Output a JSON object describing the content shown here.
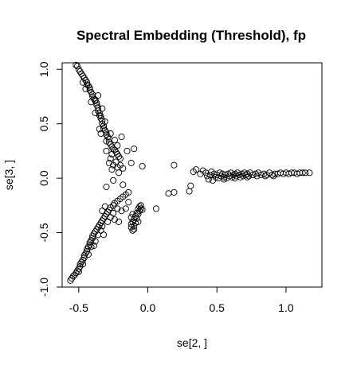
{
  "chart_data": {
    "type": "scatter",
    "title": "Spectral Embedding (Threshold), fp",
    "xlabel": "se[2, ]",
    "ylabel": "se[3, ]",
    "xlim": [
      -0.62,
      1.26
    ],
    "ylim": [
      -1.0,
      1.06
    ],
    "x_ticks": [
      -0.5,
      0.0,
      0.5,
      1.0
    ],
    "x_tick_labels": [
      "-0.5",
      "0.0",
      "0.5",
      "1.0"
    ],
    "y_ticks": [
      -1.0,
      -0.5,
      0.0,
      0.5,
      1.0
    ],
    "y_tick_labels": [
      "-1.0",
      "-0.5",
      "0.0",
      "0.5",
      "1.0"
    ],
    "marker": "open-circle",
    "grid": false,
    "legend": "none",
    "series": [
      {
        "points": [
          [
            -0.52,
            1.04
          ],
          [
            -0.51,
            1.03
          ],
          [
            -0.5,
            1.0
          ],
          [
            -0.49,
            0.98
          ],
          [
            -0.48,
            0.96
          ],
          [
            -0.47,
            0.94
          ],
          [
            -0.46,
            0.92
          ],
          [
            -0.45,
            0.9
          ],
          [
            -0.44,
            0.88
          ],
          [
            -0.44,
            0.86
          ],
          [
            -0.43,
            0.85
          ],
          [
            -0.42,
            0.83
          ],
          [
            -0.42,
            0.81
          ],
          [
            -0.41,
            0.79
          ],
          [
            -0.4,
            0.77
          ],
          [
            -0.4,
            0.75
          ],
          [
            -0.39,
            0.73
          ],
          [
            -0.38,
            0.71
          ],
          [
            -0.38,
            0.72
          ],
          [
            -0.37,
            0.69
          ],
          [
            -0.37,
            0.67
          ],
          [
            -0.36,
            0.65
          ],
          [
            -0.36,
            0.62
          ],
          [
            -0.35,
            0.6
          ],
          [
            -0.35,
            0.58
          ],
          [
            -0.34,
            0.57
          ],
          [
            -0.34,
            0.55
          ],
          [
            -0.33,
            0.53
          ],
          [
            -0.33,
            0.5
          ],
          [
            -0.32,
            0.48
          ],
          [
            -0.32,
            0.46
          ],
          [
            -0.31,
            0.44
          ],
          [
            -0.3,
            0.42
          ],
          [
            -0.3,
            0.4
          ],
          [
            -0.29,
            0.38
          ],
          [
            -0.28,
            0.36
          ],
          [
            -0.28,
            0.33
          ],
          [
            -0.27,
            0.31
          ],
          [
            -0.26,
            0.29
          ],
          [
            -0.25,
            0.27
          ],
          [
            -0.24,
            0.26
          ],
          [
            -0.23,
            0.24
          ],
          [
            -0.22,
            0.22
          ],
          [
            -0.21,
            0.2
          ],
          [
            -0.2,
            0.18
          ],
          [
            -0.24,
            0.35
          ],
          [
            -0.22,
            0.3
          ],
          [
            -0.26,
            0.22
          ],
          [
            -0.3,
            0.25
          ],
          [
            -0.27,
            0.18
          ],
          [
            -0.23,
            0.15
          ],
          [
            -0.2,
            0.12
          ],
          [
            -0.28,
            0.14
          ],
          [
            -0.25,
            0.12
          ],
          [
            -0.22,
            0.1
          ],
          [
            -0.18,
            0.09
          ],
          [
            -0.26,
            0.08
          ],
          [
            -0.15,
            0.25
          ],
          [
            -0.1,
            0.27
          ],
          [
            -0.35,
            0.45
          ],
          [
            -0.31,
            0.52
          ],
          [
            -0.38,
            0.6
          ],
          [
            -0.33,
            0.64
          ],
          [
            -0.41,
            0.7
          ],
          [
            -0.36,
            0.76
          ],
          [
            -0.47,
            0.88
          ],
          [
            -0.45,
            0.82
          ],
          [
            -0.34,
            0.41
          ],
          [
            -0.3,
            0.34
          ],
          [
            -0.27,
            0.41
          ],
          [
            -0.04,
            0.11
          ],
          [
            -0.12,
            0.14
          ],
          [
            -0.21,
            0.05
          ],
          [
            -0.19,
            0.38
          ],
          [
            -0.56,
            -0.94
          ],
          [
            -0.55,
            -0.92
          ],
          [
            -0.54,
            -0.9
          ],
          [
            -0.53,
            -0.89
          ],
          [
            -0.52,
            -0.87
          ],
          [
            -0.51,
            -0.85
          ],
          [
            -0.5,
            -0.83
          ],
          [
            -0.49,
            -0.81
          ],
          [
            -0.49,
            -0.79
          ],
          [
            -0.48,
            -0.77
          ],
          [
            -0.47,
            -0.75
          ],
          [
            -0.46,
            -0.73
          ],
          [
            -0.46,
            -0.71
          ],
          [
            -0.45,
            -0.69
          ],
          [
            -0.44,
            -0.67
          ],
          [
            -0.44,
            -0.65
          ],
          [
            -0.43,
            -0.63
          ],
          [
            -0.42,
            -0.61
          ],
          [
            -0.42,
            -0.59
          ],
          [
            -0.41,
            -0.57
          ],
          [
            -0.4,
            -0.55
          ],
          [
            -0.4,
            -0.53
          ],
          [
            -0.39,
            -0.51
          ],
          [
            -0.38,
            -0.49
          ],
          [
            -0.37,
            -0.47
          ],
          [
            -0.36,
            -0.45
          ],
          [
            -0.35,
            -0.43
          ],
          [
            -0.34,
            -0.41
          ],
          [
            -0.33,
            -0.39
          ],
          [
            -0.32,
            -0.37
          ],
          [
            -0.31,
            -0.35
          ],
          [
            -0.3,
            -0.33
          ],
          [
            -0.29,
            -0.31
          ],
          [
            -0.28,
            -0.29
          ],
          [
            -0.27,
            -0.27
          ],
          [
            -0.25,
            -0.25
          ],
          [
            -0.24,
            -0.23
          ],
          [
            -0.22,
            -0.21
          ],
          [
            -0.2,
            -0.19
          ],
          [
            -0.18,
            -0.17
          ],
          [
            -0.16,
            -0.15
          ],
          [
            -0.14,
            -0.13
          ],
          [
            -0.29,
            -0.4
          ],
          [
            -0.27,
            -0.36
          ],
          [
            -0.33,
            -0.3
          ],
          [
            -0.31,
            -0.26
          ],
          [
            -0.25,
            -0.32
          ],
          [
            -0.22,
            -0.28
          ],
          [
            -0.19,
            -0.3
          ],
          [
            -0.16,
            -0.28
          ],
          [
            -0.24,
            -0.38
          ],
          [
            -0.21,
            -0.4
          ],
          [
            -0.34,
            -0.48
          ],
          [
            -0.36,
            -0.52
          ],
          [
            -0.38,
            -0.58
          ],
          [
            -0.41,
            -0.63
          ],
          [
            -0.43,
            -0.7
          ],
          [
            -0.47,
            -0.79
          ],
          [
            -0.5,
            -0.86
          ],
          [
            -0.3,
            -0.08
          ],
          [
            -0.25,
            -0.02
          ],
          [
            -0.18,
            -0.06
          ],
          [
            -0.14,
            -0.22
          ],
          [
            -0.33,
            -0.44
          ],
          [
            -0.32,
            -0.52
          ],
          [
            -0.39,
            -0.62
          ],
          [
            -0.12,
            -0.45
          ],
          [
            -0.12,
            -0.42
          ],
          [
            -0.11,
            -0.48
          ],
          [
            -0.11,
            -0.4
          ],
          [
            -0.1,
            -0.44
          ],
          [
            -0.1,
            -0.38
          ],
          [
            -0.1,
            -0.47
          ],
          [
            -0.09,
            -0.35
          ],
          [
            -0.09,
            -0.41
          ],
          [
            -0.08,
            -0.32
          ],
          [
            -0.08,
            -0.37
          ],
          [
            -0.07,
            -0.28
          ],
          [
            -0.07,
            -0.33
          ],
          [
            -0.06,
            -0.26
          ],
          [
            -0.06,
            -0.3
          ],
          [
            -0.05,
            -0.25
          ],
          [
            -0.05,
            -0.28
          ],
          [
            -0.12,
            -0.36
          ],
          [
            -0.11,
            -0.33
          ],
          [
            -0.04,
            -0.29
          ],
          [
            -0.07,
            -0.4
          ],
          [
            0.06,
            -0.28
          ],
          [
            0.15,
            -0.14
          ],
          [
            0.19,
            -0.13
          ],
          [
            0.19,
            0.12
          ],
          [
            0.3,
            -0.12
          ],
          [
            0.31,
            -0.07
          ],
          [
            0.33,
            0.06
          ],
          [
            0.35,
            0.08
          ],
          [
            0.38,
            0.04
          ],
          [
            0.4,
            0.07
          ],
          [
            0.42,
            0.05
          ],
          [
            0.43,
            0.02
          ],
          [
            0.44,
            -0.01
          ],
          [
            0.45,
            0.03
          ],
          [
            0.46,
            0.06
          ],
          [
            0.48,
            0.04
          ],
          [
            0.49,
            0.01
          ],
          [
            0.5,
            0.03
          ],
          [
            0.51,
            0.0
          ],
          [
            0.52,
            0.05
          ],
          [
            0.53,
            0.02
          ],
          [
            0.54,
            0.04
          ],
          [
            0.55,
            0.01
          ],
          [
            0.56,
            0.03
          ],
          [
            0.57,
            0.0
          ],
          [
            0.58,
            0.04
          ],
          [
            0.59,
            0.02
          ],
          [
            0.6,
            0.05
          ],
          [
            0.61,
            0.01
          ],
          [
            0.62,
            0.03
          ],
          [
            0.63,
            0.04
          ],
          [
            0.64,
            0.02
          ],
          [
            0.65,
            0.05
          ],
          [
            0.66,
            0.03
          ],
          [
            0.67,
            0.01
          ],
          [
            0.68,
            0.04
          ],
          [
            0.69,
            0.02
          ],
          [
            0.7,
            0.05
          ],
          [
            0.71,
            0.03
          ],
          [
            0.72,
            0.04
          ],
          [
            0.73,
            0.02
          ],
          [
            0.74,
            0.05
          ],
          [
            0.76,
            0.03
          ],
          [
            0.78,
            0.04
          ],
          [
            0.79,
            0.02
          ],
          [
            0.8,
            0.05
          ],
          [
            0.82,
            0.03
          ],
          [
            0.84,
            0.04
          ],
          [
            0.86,
            0.03
          ],
          [
            0.88,
            0.05
          ],
          [
            0.9,
            0.03
          ],
          [
            0.92,
            0.04
          ],
          [
            0.94,
            0.04
          ],
          [
            0.96,
            0.05
          ],
          [
            0.98,
            0.04
          ],
          [
            1.0,
            0.05
          ],
          [
            1.02,
            0.04
          ],
          [
            1.04,
            0.05
          ],
          [
            1.06,
            0.05
          ],
          [
            1.08,
            0.04
          ],
          [
            1.1,
            0.05
          ],
          [
            1.12,
            0.05
          ],
          [
            1.14,
            0.05
          ],
          [
            1.17,
            0.05
          ],
          [
            0.47,
            -0.02
          ],
          [
            0.55,
            -0.01
          ],
          [
            0.63,
            0.0
          ],
          [
            0.72,
            0.01
          ],
          [
            0.85,
            0.02
          ],
          [
            0.91,
            0.02
          ]
        ]
      }
    ]
  }
}
